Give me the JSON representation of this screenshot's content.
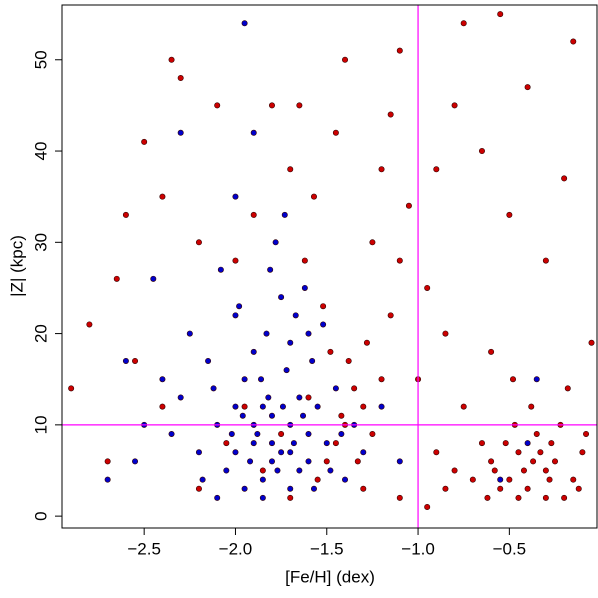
{
  "chart_data": {
    "type": "scatter",
    "x_label": "[Fe/H] (dex)",
    "y_label": "|Z| (kpc)",
    "xlim": [
      -2.95,
      -0.02
    ],
    "ylim": [
      -1.3,
      56
    ],
    "xticks": [
      {
        "value": -2.5,
        "label": "−2.5"
      },
      {
        "value": -2.0,
        "label": "−2.0"
      },
      {
        "value": -1.5,
        "label": "−1.5"
      },
      {
        "value": -1.0,
        "label": "−1.0"
      },
      {
        "value": -0.5,
        "label": "−0.5"
      }
    ],
    "yticks": [
      0,
      10,
      20,
      30,
      40,
      50
    ],
    "reference_lines": {
      "x": [
        -1.0
      ],
      "y": [
        10
      ],
      "color": "#ff00ff"
    },
    "series": [
      {
        "color": "#cc0000",
        "x": [
          -0.5,
          -0.4,
          -0.3,
          -0.2,
          -0.6,
          -0.45,
          -0.35,
          -0.25,
          -0.15,
          -0.55,
          -0.65,
          -0.1,
          -0.3,
          -0.42,
          -0.52,
          -0.22,
          -0.7,
          -0.8,
          -0.9,
          -0.38,
          -0.48,
          -0.18,
          -0.05,
          -0.6,
          -0.75,
          -0.85,
          -0.95,
          -0.3,
          -0.5,
          -0.2,
          -0.65,
          -0.4,
          -0.15,
          -0.55,
          -0.8,
          -0.9,
          -1.05,
          -1.1,
          -1.15,
          -1.2,
          -1.3,
          -1.4,
          -1.35,
          -1.45,
          -1.5,
          -1.38,
          -1.28,
          -1.42,
          -1.55,
          -1.6,
          -1.25,
          -1.33,
          -1.48,
          -1.52,
          -1.62,
          -1.57,
          -1.7,
          -1.45,
          -1.4,
          -1.8,
          -2.1,
          -2.3,
          -2.35,
          -2.5,
          -2.6,
          -2.4,
          -2.2,
          -2.0,
          -1.9,
          -1.65,
          -1.25,
          -1.2,
          -1.15,
          -1.1,
          -0.75,
          -1.85,
          -1.75,
          -1.95,
          -2.05,
          -1.7,
          -2.2,
          -2.4,
          -2.7,
          -2.8,
          -2.9,
          -2.65,
          -2.55,
          -1.3,
          -1.1,
          -1.0,
          -0.95,
          -0.85,
          -0.28,
          -0.33,
          -0.45,
          -0.58,
          -0.12,
          -0.08,
          -0.62,
          -0.37,
          -0.47,
          -0.27
        ],
        "y": [
          4,
          3,
          5,
          2,
          6,
          7,
          9,
          6,
          4,
          3,
          8,
          7,
          2,
          5,
          8,
          10,
          4,
          5,
          7,
          12,
          15,
          14,
          19,
          18,
          12,
          20,
          25,
          28,
          33,
          37,
          40,
          47,
          52,
          55,
          45,
          38,
          34,
          28,
          22,
          15,
          12,
          10,
          14,
          8,
          6,
          17,
          19,
          11,
          4,
          13,
          9,
          6,
          18,
          23,
          28,
          35,
          38,
          42,
          50,
          45,
          45,
          48,
          50,
          41,
          33,
          35,
          30,
          28,
          33,
          45,
          30,
          38,
          44,
          51,
          54,
          5,
          9,
          12,
          8,
          2,
          3,
          12,
          6,
          21,
          14,
          26,
          17,
          3,
          2,
          15,
          1,
          3,
          4,
          7,
          2,
          5,
          3,
          9,
          2,
          6,
          10,
          8
        ]
      },
      {
        "color": "#0000cc",
        "x": [
          -1.9,
          -1.8,
          -1.7,
          -2.0,
          -1.85,
          -1.75,
          -1.6,
          -1.95,
          -2.1,
          -1.65,
          -1.55,
          -1.7,
          -1.8,
          -1.9,
          -2.2,
          -2.3,
          -2.05,
          -1.5,
          -1.45,
          -1.6,
          -1.75,
          -2.0,
          -2.15,
          -1.85,
          -1.95,
          -1.65,
          -1.72,
          -1.88,
          -2.25,
          -2.4,
          -2.5,
          -2.6,
          -2.7,
          -2.45,
          -1.78,
          -2.0,
          -1.62,
          -1.9,
          -1.95,
          -2.3,
          -1.7,
          -1.58,
          -1.52,
          -1.35,
          -1.3,
          -1.4,
          -1.2,
          -1.1,
          -0.55,
          -0.4,
          -0.35,
          -2.1,
          -1.82,
          -1.68,
          -1.92,
          -2.02,
          -1.77,
          -1.63,
          -1.86,
          -2.12,
          -2.08,
          -1.81,
          -1.73,
          -1.98,
          -2.35,
          -2.55,
          -1.48,
          -1.42,
          -1.57,
          -1.67,
          -1.83,
          -1.74,
          -1.96,
          -2.18,
          -1.6,
          -1.8,
          -1.9,
          -1.7,
          -1.85,
          -2.0
        ],
        "y": [
          8,
          6,
          10,
          12,
          4,
          7,
          9,
          15,
          10,
          5,
          12,
          3,
          11,
          18,
          7,
          13,
          5,
          8,
          14,
          20,
          24,
          22,
          17,
          2,
          3,
          13,
          16,
          9,
          20,
          15,
          10,
          17,
          4,
          26,
          30,
          35,
          25,
          42,
          54,
          42,
          19,
          17,
          21,
          10,
          7,
          4,
          12,
          6,
          4,
          8,
          15,
          2,
          13,
          8,
          6,
          9,
          5,
          11,
          15,
          14,
          27,
          27,
          33,
          23,
          9,
          6,
          5,
          9,
          3,
          22,
          20,
          12,
          11,
          4,
          6,
          8,
          10,
          7,
          12,
          7
        ]
      }
    ]
  }
}
